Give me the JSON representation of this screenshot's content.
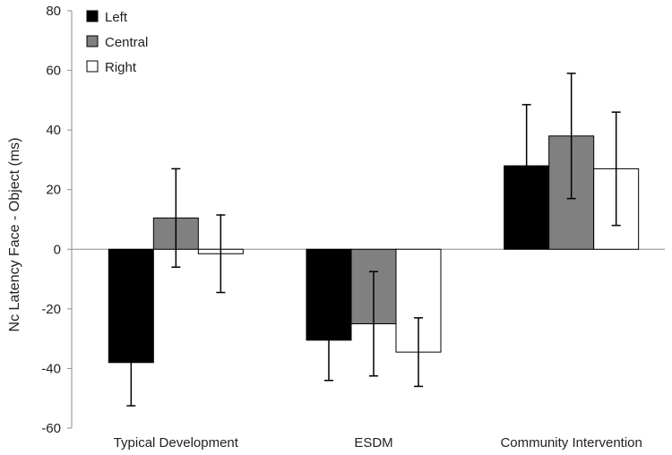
{
  "chart_data": {
    "type": "bar",
    "title": "",
    "xlabel": "",
    "ylabel": "Nc Latency Face - Object (ms)",
    "ylim": [
      -60,
      80
    ],
    "yticks": [
      -60,
      -40,
      -20,
      0,
      20,
      40,
      60,
      80
    ],
    "grid": false,
    "legend_position": "top-left",
    "categories": [
      "Typical Development",
      "ESDM",
      "Community Intervention"
    ],
    "series": [
      {
        "name": "Left",
        "color": "#000000",
        "values": [
          -38,
          -30.5,
          28
        ],
        "error": [
          14.5,
          13.5,
          20.5
        ]
      },
      {
        "name": "Central",
        "color": "#808080",
        "values": [
          10.5,
          -25,
          38
        ],
        "error": [
          16.5,
          17.5,
          21
        ]
      },
      {
        "name": "Right",
        "color": "#ffffff",
        "values": [
          -1.5,
          -34.5,
          27
        ],
        "error": [
          13,
          11.5,
          19
        ]
      }
    ]
  }
}
